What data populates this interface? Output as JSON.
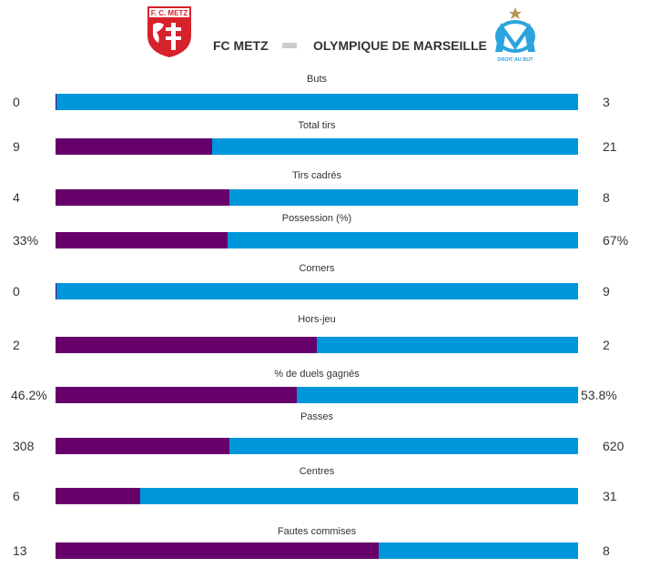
{
  "match": {
    "home_team": "FC METZ",
    "away_team": "OLYMPIQUE DE MARSEILLE",
    "home_logo_text": "F. C. METZ",
    "away_logo_text": "DROIT AU BUT"
  },
  "colors": {
    "home": "#66006a",
    "away": "#0096db",
    "home_logo": "#d6222a",
    "away_logo": "#2ba4dd",
    "away_star": "#b8955a"
  },
  "chart_data": {
    "type": "bar",
    "orientation": "horizontal-stacked-share",
    "series": [
      {
        "name": "FC METZ",
        "color": "#66006a"
      },
      {
        "name": "OLYMPIQUE DE MARSEILLE",
        "color": "#0096db"
      }
    ],
    "stats": [
      {
        "label": "Buts",
        "home": 0,
        "away": 3,
        "home_text": "0",
        "away_text": "3"
      },
      {
        "label": "Total tirs",
        "home": 9,
        "away": 21,
        "home_text": "9",
        "away_text": "21"
      },
      {
        "label": "Tirs cadrés",
        "home": 4,
        "away": 8,
        "home_text": "4",
        "away_text": "8"
      },
      {
        "label": "Possession (%)",
        "home": 33,
        "away": 67,
        "home_text": "33%",
        "away_text": "67%"
      },
      {
        "label": "Corners",
        "home": 0,
        "away": 9,
        "home_text": "0",
        "away_text": "9"
      },
      {
        "label": "Hors-jeu",
        "home": 2,
        "away": 2,
        "home_text": "2",
        "away_text": "2"
      },
      {
        "label": "% de duels gagnés",
        "home": 46.2,
        "away": 53.8,
        "home_text": "46.2%",
        "away_text": "53.8%"
      },
      {
        "label": "Passes",
        "home": 308,
        "away": 620,
        "home_text": "308",
        "away_text": "620"
      },
      {
        "label": "Centres",
        "home": 6,
        "away": 31,
        "home_text": "6",
        "away_text": "31"
      },
      {
        "label": "Fautes commises",
        "home": 13,
        "away": 8,
        "home_text": "13",
        "away_text": "8"
      }
    ]
  }
}
